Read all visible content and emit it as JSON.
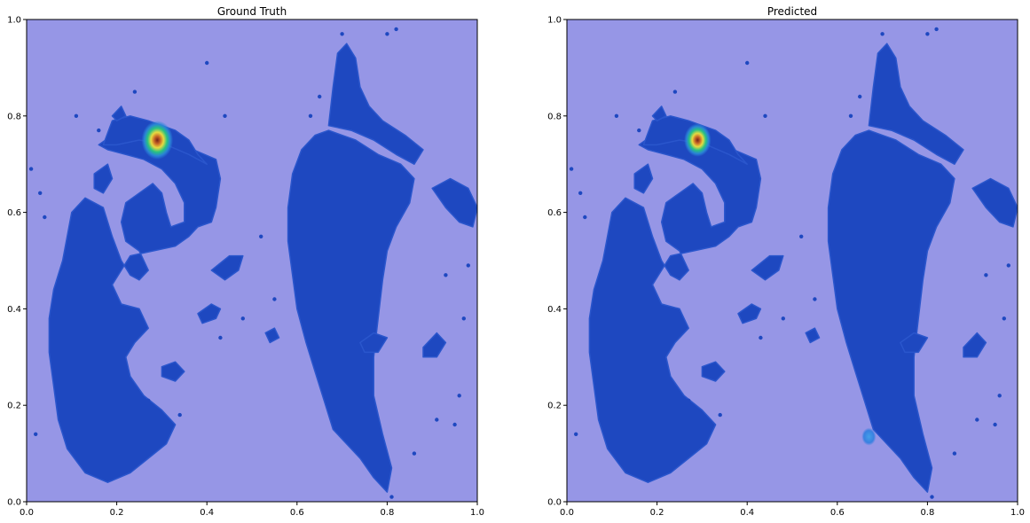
{
  "colors": {
    "background": "#9696e6",
    "tissue": "#1e48c0",
    "heat_low": "#2a7fd8",
    "heat_mid": "#22c088",
    "heat_high": "#ffff33",
    "heat_peak": "#8a2a1a"
  },
  "chart_data": [
    {
      "type": "heatmap",
      "title": "Ground Truth",
      "xlabel": "",
      "ylabel": "",
      "xlim": [
        0,
        1
      ],
      "ylim": [
        0,
        1
      ],
      "x_ticks": [
        "0.0",
        "0.2",
        "0.4",
        "0.6",
        "0.8",
        "1.0"
      ],
      "y_ticks": [
        "0.0",
        "0.2",
        "0.4",
        "0.6",
        "0.8",
        "1.0"
      ],
      "grid": false,
      "hotspots": [
        {
          "x": 0.29,
          "y": 0.75,
          "intensity": 1.0,
          "radius": 0.035
        }
      ]
    },
    {
      "type": "heatmap",
      "title": "Predicted",
      "xlabel": "",
      "ylabel": "",
      "xlim": [
        0,
        1
      ],
      "ylim": [
        0,
        1
      ],
      "x_ticks": [
        "0.0",
        "0.2",
        "0.4",
        "0.6",
        "0.8",
        "1.0"
      ],
      "y_ticks": [
        "0.0",
        "0.2",
        "0.4",
        "0.6",
        "0.8",
        "1.0"
      ],
      "grid": false,
      "hotspots": [
        {
          "x": 0.29,
          "y": 0.75,
          "intensity": 0.85,
          "radius": 0.03
        },
        {
          "x": 0.67,
          "y": 0.135,
          "intensity": 0.3,
          "radius": 0.016
        }
      ]
    }
  ],
  "tissue_regions": [
    {
      "name": "left-mass",
      "points": [
        [
          0.1,
          0.6
        ],
        [
          0.13,
          0.63
        ],
        [
          0.17,
          0.61
        ],
        [
          0.19,
          0.55
        ],
        [
          0.21,
          0.5
        ],
        [
          0.23,
          0.47
        ],
        [
          0.25,
          0.46
        ],
        [
          0.27,
          0.48
        ],
        [
          0.25,
          0.52
        ],
        [
          0.22,
          0.54
        ],
        [
          0.21,
          0.58
        ],
        [
          0.22,
          0.62
        ],
        [
          0.25,
          0.64
        ],
        [
          0.28,
          0.66
        ],
        [
          0.3,
          0.64
        ],
        [
          0.31,
          0.6
        ],
        [
          0.32,
          0.57
        ],
        [
          0.35,
          0.58
        ],
        [
          0.35,
          0.62
        ],
        [
          0.33,
          0.66
        ],
        [
          0.3,
          0.69
        ],
        [
          0.26,
          0.71
        ],
        [
          0.22,
          0.72
        ],
        [
          0.18,
          0.73
        ],
        [
          0.16,
          0.74
        ],
        [
          0.19,
          0.76
        ],
        [
          0.23,
          0.78
        ],
        [
          0.28,
          0.78
        ],
        [
          0.33,
          0.76
        ],
        [
          0.37,
          0.73
        ],
        [
          0.42,
          0.71
        ],
        [
          0.43,
          0.67
        ],
        [
          0.42,
          0.61
        ],
        [
          0.41,
          0.58
        ],
        [
          0.38,
          0.57
        ],
        [
          0.36,
          0.55
        ],
        [
          0.33,
          0.53
        ],
        [
          0.28,
          0.52
        ],
        [
          0.23,
          0.51
        ],
        [
          0.21,
          0.48
        ],
        [
          0.19,
          0.45
        ],
        [
          0.21,
          0.41
        ],
        [
          0.25,
          0.4
        ],
        [
          0.27,
          0.36
        ],
        [
          0.24,
          0.33
        ],
        [
          0.22,
          0.3
        ],
        [
          0.23,
          0.26
        ],
        [
          0.26,
          0.22
        ],
        [
          0.3,
          0.19
        ],
        [
          0.33,
          0.16
        ],
        [
          0.31,
          0.12
        ],
        [
          0.27,
          0.09
        ],
        [
          0.23,
          0.06
        ],
        [
          0.18,
          0.04
        ],
        [
          0.13,
          0.06
        ],
        [
          0.09,
          0.11
        ],
        [
          0.07,
          0.17
        ],
        [
          0.06,
          0.24
        ],
        [
          0.05,
          0.31
        ],
        [
          0.05,
          0.38
        ],
        [
          0.06,
          0.44
        ],
        [
          0.08,
          0.5
        ]
      ]
    },
    {
      "name": "left-lobe-top",
      "points": [
        [
          0.17,
          0.74
        ],
        [
          0.19,
          0.79
        ],
        [
          0.23,
          0.8
        ],
        [
          0.27,
          0.79
        ],
        [
          0.3,
          0.78
        ],
        [
          0.33,
          0.77
        ],
        [
          0.36,
          0.75
        ],
        [
          0.38,
          0.72
        ],
        [
          0.4,
          0.7
        ],
        [
          0.36,
          0.72
        ],
        [
          0.31,
          0.74
        ],
        [
          0.25,
          0.75
        ],
        [
          0.2,
          0.74
        ]
      ]
    },
    {
      "name": "right-band",
      "points": [
        [
          0.59,
          0.68
        ],
        [
          0.61,
          0.73
        ],
        [
          0.64,
          0.76
        ],
        [
          0.67,
          0.77
        ],
        [
          0.7,
          0.76
        ],
        [
          0.73,
          0.75
        ],
        [
          0.78,
          0.72
        ],
        [
          0.83,
          0.7
        ],
        [
          0.86,
          0.67
        ],
        [
          0.85,
          0.62
        ],
        [
          0.82,
          0.57
        ],
        [
          0.8,
          0.52
        ],
        [
          0.79,
          0.46
        ],
        [
          0.78,
          0.38
        ],
        [
          0.77,
          0.3
        ],
        [
          0.77,
          0.22
        ],
        [
          0.79,
          0.14
        ],
        [
          0.81,
          0.07
        ],
        [
          0.8,
          0.02
        ],
        [
          0.77,
          0.05
        ],
        [
          0.74,
          0.09
        ],
        [
          0.71,
          0.12
        ],
        [
          0.68,
          0.15
        ],
        [
          0.66,
          0.21
        ],
        [
          0.64,
          0.27
        ],
        [
          0.62,
          0.33
        ],
        [
          0.6,
          0.4
        ],
        [
          0.59,
          0.47
        ],
        [
          0.58,
          0.54
        ],
        [
          0.58,
          0.61
        ]
      ]
    },
    {
      "name": "right-upper-arm",
      "points": [
        [
          0.67,
          0.78
        ],
        [
          0.68,
          0.86
        ],
        [
          0.69,
          0.93
        ],
        [
          0.71,
          0.95
        ],
        [
          0.73,
          0.92
        ],
        [
          0.74,
          0.86
        ],
        [
          0.76,
          0.82
        ],
        [
          0.79,
          0.79
        ],
        [
          0.84,
          0.76
        ],
        [
          0.88,
          0.73
        ],
        [
          0.86,
          0.7
        ],
        [
          0.82,
          0.72
        ],
        [
          0.77,
          0.75
        ],
        [
          0.72,
          0.77
        ]
      ]
    },
    {
      "name": "right-edge-arm",
      "points": [
        [
          0.9,
          0.65
        ],
        [
          0.94,
          0.67
        ],
        [
          0.98,
          0.65
        ],
        [
          1.0,
          0.61
        ],
        [
          0.99,
          0.57
        ],
        [
          0.96,
          0.58
        ],
        [
          0.93,
          0.61
        ]
      ]
    },
    {
      "name": "blob-a",
      "points": [
        [
          0.41,
          0.48
        ],
        [
          0.45,
          0.51
        ],
        [
          0.48,
          0.51
        ],
        [
          0.47,
          0.48
        ],
        [
          0.44,
          0.46
        ]
      ]
    },
    {
      "name": "blob-b",
      "points": [
        [
          0.38,
          0.39
        ],
        [
          0.41,
          0.41
        ],
        [
          0.43,
          0.4
        ],
        [
          0.42,
          0.38
        ],
        [
          0.39,
          0.37
        ]
      ]
    },
    {
      "name": "blob-c",
      "points": [
        [
          0.3,
          0.28
        ],
        [
          0.33,
          0.29
        ],
        [
          0.35,
          0.27
        ],
        [
          0.33,
          0.25
        ],
        [
          0.3,
          0.26
        ]
      ]
    },
    {
      "name": "blob-d",
      "points": [
        [
          0.15,
          0.68
        ],
        [
          0.18,
          0.7
        ],
        [
          0.19,
          0.67
        ],
        [
          0.17,
          0.64
        ],
        [
          0.15,
          0.65
        ]
      ]
    },
    {
      "name": "blob-e",
      "points": [
        [
          0.74,
          0.33
        ],
        [
          0.77,
          0.35
        ],
        [
          0.8,
          0.34
        ],
        [
          0.78,
          0.31
        ],
        [
          0.75,
          0.31
        ]
      ]
    },
    {
      "name": "blob-f",
      "points": [
        [
          0.88,
          0.32
        ],
        [
          0.91,
          0.35
        ],
        [
          0.93,
          0.33
        ],
        [
          0.91,
          0.3
        ],
        [
          0.88,
          0.3
        ]
      ]
    },
    {
      "name": "blob-g",
      "points": [
        [
          0.53,
          0.35
        ],
        [
          0.55,
          0.36
        ],
        [
          0.56,
          0.34
        ],
        [
          0.54,
          0.33
        ]
      ]
    },
    {
      "name": "blob-h",
      "points": [
        [
          0.19,
          0.8
        ],
        [
          0.21,
          0.82
        ],
        [
          0.22,
          0.8
        ],
        [
          0.2,
          0.79
        ]
      ]
    }
  ],
  "tissue_dots": [
    [
      0.03,
      0.64
    ],
    [
      0.04,
      0.59
    ],
    [
      0.01,
      0.69
    ],
    [
      0.02,
      0.14
    ],
    [
      0.24,
      0.85
    ],
    [
      0.4,
      0.91
    ],
    [
      0.44,
      0.8
    ],
    [
      0.48,
      0.38
    ],
    [
      0.43,
      0.34
    ],
    [
      0.27,
      0.21
    ],
    [
      0.34,
      0.18
    ],
    [
      0.11,
      0.8
    ],
    [
      0.16,
      0.77
    ],
    [
      0.52,
      0.55
    ],
    [
      0.55,
      0.42
    ],
    [
      0.7,
      0.97
    ],
    [
      0.8,
      0.97
    ],
    [
      0.82,
      0.98
    ],
    [
      0.96,
      0.22
    ],
    [
      0.91,
      0.17
    ],
    [
      0.93,
      0.47
    ],
    [
      0.97,
      0.38
    ],
    [
      0.98,
      0.49
    ],
    [
      0.95,
      0.16
    ],
    [
      0.86,
      0.1
    ],
    [
      0.81,
      0.01
    ],
    [
      0.74,
      0.68
    ],
    [
      0.76,
      0.62
    ],
    [
      0.63,
      0.8
    ],
    [
      0.65,
      0.84
    ]
  ]
}
